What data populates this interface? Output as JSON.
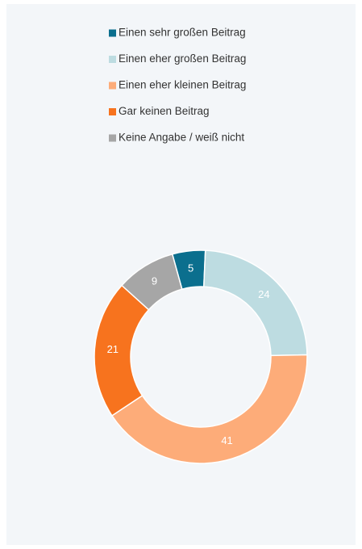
{
  "chart_data": {
    "type": "donut",
    "categories": [
      "Einen sehr großen Beitrag",
      "Einen eher großen Beitrag",
      "Einen eher kleinen Beitrag",
      "Gar keinen Beitrag",
      "Keine Angabe / weiß nicht"
    ],
    "values": [
      5,
      24,
      41,
      21,
      9
    ],
    "colors": [
      "#0b6f8e",
      "#bddce1",
      "#fdac79",
      "#f7731e",
      "#a6a6a6"
    ]
  }
}
